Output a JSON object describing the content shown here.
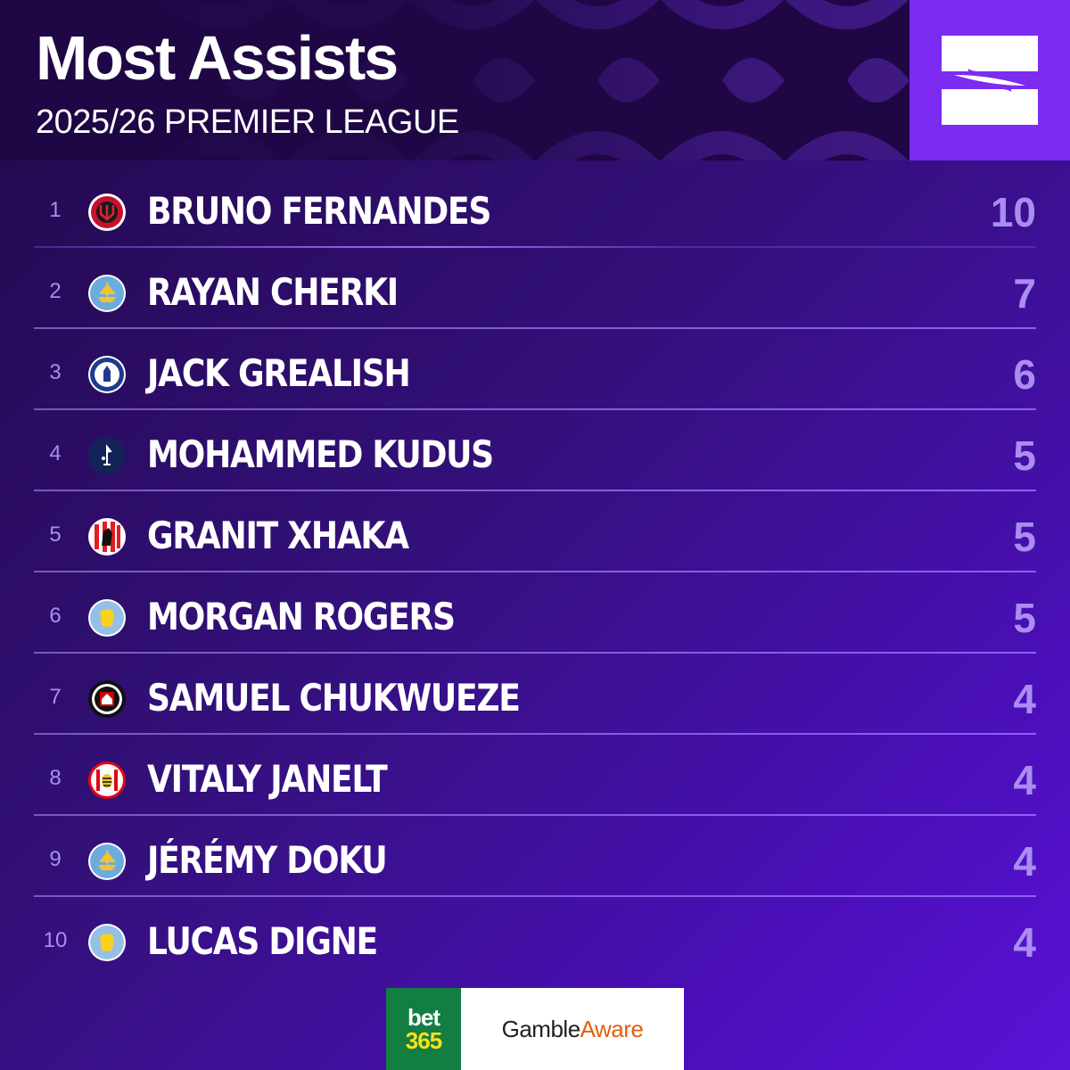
{
  "header": {
    "title": "Most Assists",
    "subtitle": "2025/26 PREMIER LEAGUE"
  },
  "brand": {
    "icon": "s-logo-icon",
    "color": "#7b2cf0"
  },
  "rows": [
    {
      "rank": "1",
      "player": "BRUNO FERNANDES",
      "value": "10",
      "crest": "manchester-united-crest"
    },
    {
      "rank": "2",
      "player": "RAYAN CHERKI",
      "value": "7",
      "crest": "manchester-city-crest"
    },
    {
      "rank": "3",
      "player": "JACK GREALISH",
      "value": "6",
      "crest": "everton-crest"
    },
    {
      "rank": "4",
      "player": "MOHAMMED KUDUS",
      "value": "5",
      "crest": "tottenham-crest"
    },
    {
      "rank": "5",
      "player": "GRANIT XHAKA",
      "value": "5",
      "crest": "sunderland-crest"
    },
    {
      "rank": "6",
      "player": "MORGAN ROGERS",
      "value": "5",
      "crest": "aston-villa-crest"
    },
    {
      "rank": "7",
      "player": "SAMUEL CHUKWUEZE",
      "value": "4",
      "crest": "fulham-crest"
    },
    {
      "rank": "8",
      "player": "VITALY JANELT",
      "value": "4",
      "crest": "brentford-crest"
    },
    {
      "rank": "9",
      "player": "JÉRÉMY DOKU",
      "value": "4",
      "crest": "manchester-city-crest"
    },
    {
      "rank": "10",
      "player": "LUCAS DIGNE",
      "value": "4",
      "crest": "aston-villa-crest"
    }
  ],
  "sponsor": {
    "bet365_top": "bet",
    "bet365_bottom": "365",
    "gamble": "Gamble",
    "aware": "Aware",
    "colors": {
      "bet365_green": "#127e42",
      "bet365_yellow": "#ffe01a",
      "aware_orange": "#e85d0c"
    }
  },
  "colors": {
    "background": "#33107a",
    "accent": "#a98df0",
    "header": "#1e0744"
  }
}
